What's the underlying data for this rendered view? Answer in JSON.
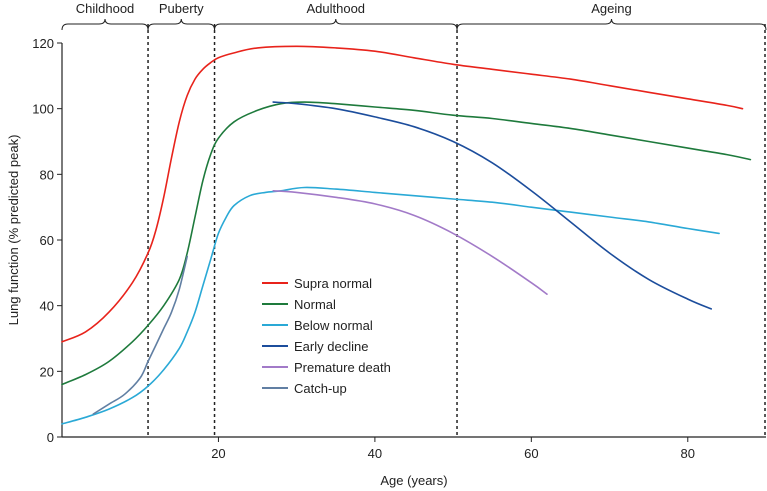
{
  "chart_data": {
    "type": "line",
    "title": "",
    "xlabel": "Age (years)",
    "ylabel": "Lung function (% predicted peak)",
    "xlim": [
      0,
      90
    ],
    "ylim": [
      0,
      120
    ],
    "xticks": [
      20,
      40,
      60,
      80
    ],
    "yticks": [
      0,
      20,
      40,
      60,
      80,
      100,
      120
    ],
    "phases": [
      {
        "label": "Childhood",
        "start": 0,
        "end": 11
      },
      {
        "label": "Puberty",
        "start": 11,
        "end": 19.5
      },
      {
        "label": "Adulthood",
        "start": 19.5,
        "end": 50.5
      },
      {
        "label": "Ageing",
        "start": 50.5,
        "end": 90
      }
    ],
    "series": [
      {
        "name": "Supra normal",
        "color": "#e8231b",
        "x": [
          0,
          3,
          6,
          9,
          11,
          12,
          13,
          14,
          15,
          16,
          17,
          18,
          19,
          20,
          22,
          25,
          30,
          35,
          40,
          45,
          50,
          55,
          60,
          65,
          70,
          75,
          80,
          85,
          87
        ],
        "y": [
          29,
          32,
          38,
          47,
          56,
          63,
          73,
          85,
          96,
          104,
          109,
          112,
          114,
          115.5,
          117,
          118.5,
          119,
          118.5,
          117.5,
          115.5,
          113.5,
          112,
          110.5,
          109,
          107,
          105,
          103,
          101,
          100
        ]
      },
      {
        "name": "Normal",
        "color": "#1e7a3c",
        "x": [
          0,
          3,
          6,
          9,
          11,
          13,
          15,
          16,
          17,
          18,
          19,
          20,
          22,
          25,
          28,
          31,
          35,
          40,
          45,
          50,
          55,
          60,
          65,
          70,
          75,
          80,
          85,
          88
        ],
        "y": [
          16,
          19,
          23,
          29,
          34,
          40,
          48,
          56,
          67,
          78,
          86,
          91,
          96,
          99.5,
          101.5,
          102,
          101.5,
          100.5,
          99.5,
          98,
          97,
          95.5,
          94,
          92,
          90,
          88,
          86,
          84.5
        ]
      },
      {
        "name": "Below normal",
        "color": "#2aa9d6",
        "x": [
          0,
          3,
          6,
          9,
          11,
          13,
          15,
          16,
          17,
          18,
          19,
          20,
          21,
          22,
          24,
          26,
          28,
          31,
          35,
          40,
          45,
          50,
          55,
          60,
          65,
          70,
          75,
          80,
          84
        ],
        "y": [
          4,
          6,
          8.5,
          12,
          15.5,
          20.5,
          27,
          32,
          38,
          46,
          54,
          62,
          67,
          70.5,
          73.5,
          74.5,
          75,
          76,
          75.5,
          74.5,
          73.5,
          72.5,
          71.5,
          70,
          68.5,
          67,
          65.5,
          63.5,
          62
        ]
      },
      {
        "name": "Early decline",
        "color": "#1c4d9c",
        "x": [
          27,
          30,
          35,
          40,
          45,
          50,
          55,
          60,
          65,
          70,
          75,
          80,
          83
        ],
        "y": [
          102,
          101.5,
          100,
          97.5,
          94.5,
          90,
          83.5,
          75,
          65.5,
          56,
          48,
          42,
          39
        ]
      },
      {
        "name": "Premature death",
        "color": "#a27ac8",
        "x": [
          27,
          30,
          35,
          40,
          45,
          50,
          55,
          60,
          62
        ],
        "y": [
          75,
          74.5,
          73,
          71,
          67.5,
          62,
          55,
          47,
          43.5
        ]
      },
      {
        "name": "Catch-up",
        "color": "#617fa3",
        "x": [
          4,
          6,
          8,
          10,
          11,
          12,
          13,
          14,
          15,
          16
        ],
        "y": [
          7,
          10,
          13,
          18,
          23,
          28,
          33,
          38,
          45,
          55
        ]
      }
    ],
    "legend_position": "lower-left-center",
    "grid": false
  }
}
